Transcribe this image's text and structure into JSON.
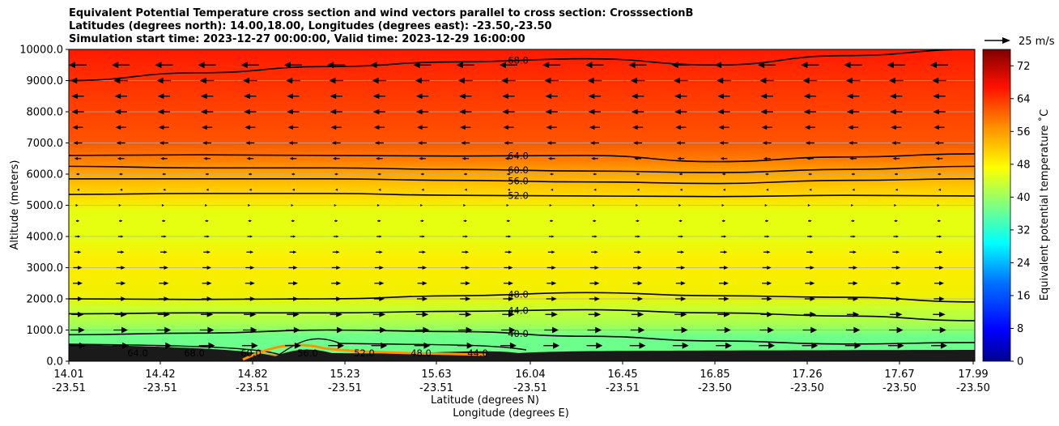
{
  "chart_data": {
    "type": "contour",
    "title_lines": [
      "Equivalent Potential Temperature cross section and wind vectors parallel to cross section: CrosssectionB",
      "Latitudes (degrees north): 14.00,18.00, Longitudes (degrees east): -23.50,-23.50",
      "Simulation start time: 2023-12-27 00:00:00, Valid time: 2023-12-29 16:00:00"
    ],
    "ylabel": "Altitude (meters)",
    "xlabel_lat": "Latitude (degrees N)",
    "xlabel_lon": "Longitude (degrees E)",
    "ylim": [
      0,
      10000
    ],
    "yticks": [
      "0.0",
      "1000.0",
      "2000.0",
      "3000.0",
      "4000.0",
      "5000.0",
      "6000.0",
      "7000.0",
      "8000.0",
      "9000.0",
      "10000.0"
    ],
    "xticks_lat": [
      "14.01",
      "14.42",
      "14.82",
      "15.23",
      "15.63",
      "16.04",
      "16.45",
      "16.85",
      "17.26",
      "17.67",
      "17.99"
    ],
    "xticks_lon": [
      "-23.51",
      "-23.51",
      "-23.51",
      "-23.51",
      "-23.51",
      "-23.51",
      "-23.51",
      "-23.50",
      "-23.50",
      "-23.50",
      "-23.50"
    ],
    "colorbar": {
      "label": "Equivalent potential temperature ˚C",
      "range": [
        0,
        76
      ],
      "ticks": [
        "0",
        "8",
        "16",
        "24",
        "32",
        "40",
        "48",
        "56",
        "64",
        "72"
      ]
    },
    "quiver_key": "25 m/s",
    "contours": [
      {
        "level": 68,
        "label": "68.0",
        "altitudes": [
          9000,
          9250,
          9450,
          9600,
          9700,
          9500,
          9800,
          10000
        ]
      },
      {
        "level": 64,
        "label": "64.0",
        "altitudes": [
          6600,
          6620,
          6600,
          6580,
          6600,
          6400,
          6550,
          6650
        ]
      },
      {
        "level": 60,
        "label": "60.0",
        "altitudes": [
          6250,
          6200,
          6200,
          6150,
          6100,
          6050,
          6150,
          6250
        ]
      },
      {
        "level": 56,
        "label": "56.0",
        "altitudes": [
          5850,
          5850,
          5850,
          5800,
          5750,
          5700,
          5800,
          5850
        ]
      },
      {
        "level": 52,
        "label": "52.0",
        "altitudes": [
          5350,
          5380,
          5380,
          5320,
          5300,
          5280,
          5320,
          5300
        ]
      },
      {
        "level": 48,
        "label": "48.0",
        "altitudes": [
          2000,
          1980,
          2000,
          2100,
          2200,
          2100,
          2050,
          1900
        ]
      },
      {
        "level": 44,
        "label": "44.0",
        "altitudes": [
          1520,
          1550,
          1550,
          1600,
          1650,
          1550,
          1450,
          1300
        ]
      },
      {
        "level": 40,
        "label": "40.0",
        "altitudes": [
          850,
          900,
          1000,
          950,
          800,
          650,
          550,
          600
        ]
      }
    ],
    "wind_arrows": {
      "levels": [
        9500,
        9000,
        8500,
        8000,
        7500,
        7000,
        6500,
        6000,
        5500,
        5000,
        4500,
        4000,
        3500,
        3000,
        2500,
        2000,
        1500,
        1000,
        500
      ],
      "u_ms": [
        -10,
        -8,
        -7,
        -7,
        -6,
        -5,
        -4,
        -2,
        -1,
        0.5,
        2,
        3,
        4,
        5,
        5.5,
        6,
        7,
        8,
        9
      ]
    },
    "surface_contour_labels": [
      "64.0",
      "68.0",
      "60.0",
      "56.0",
      "52.0",
      "48.0",
      "44.0"
    ]
  }
}
